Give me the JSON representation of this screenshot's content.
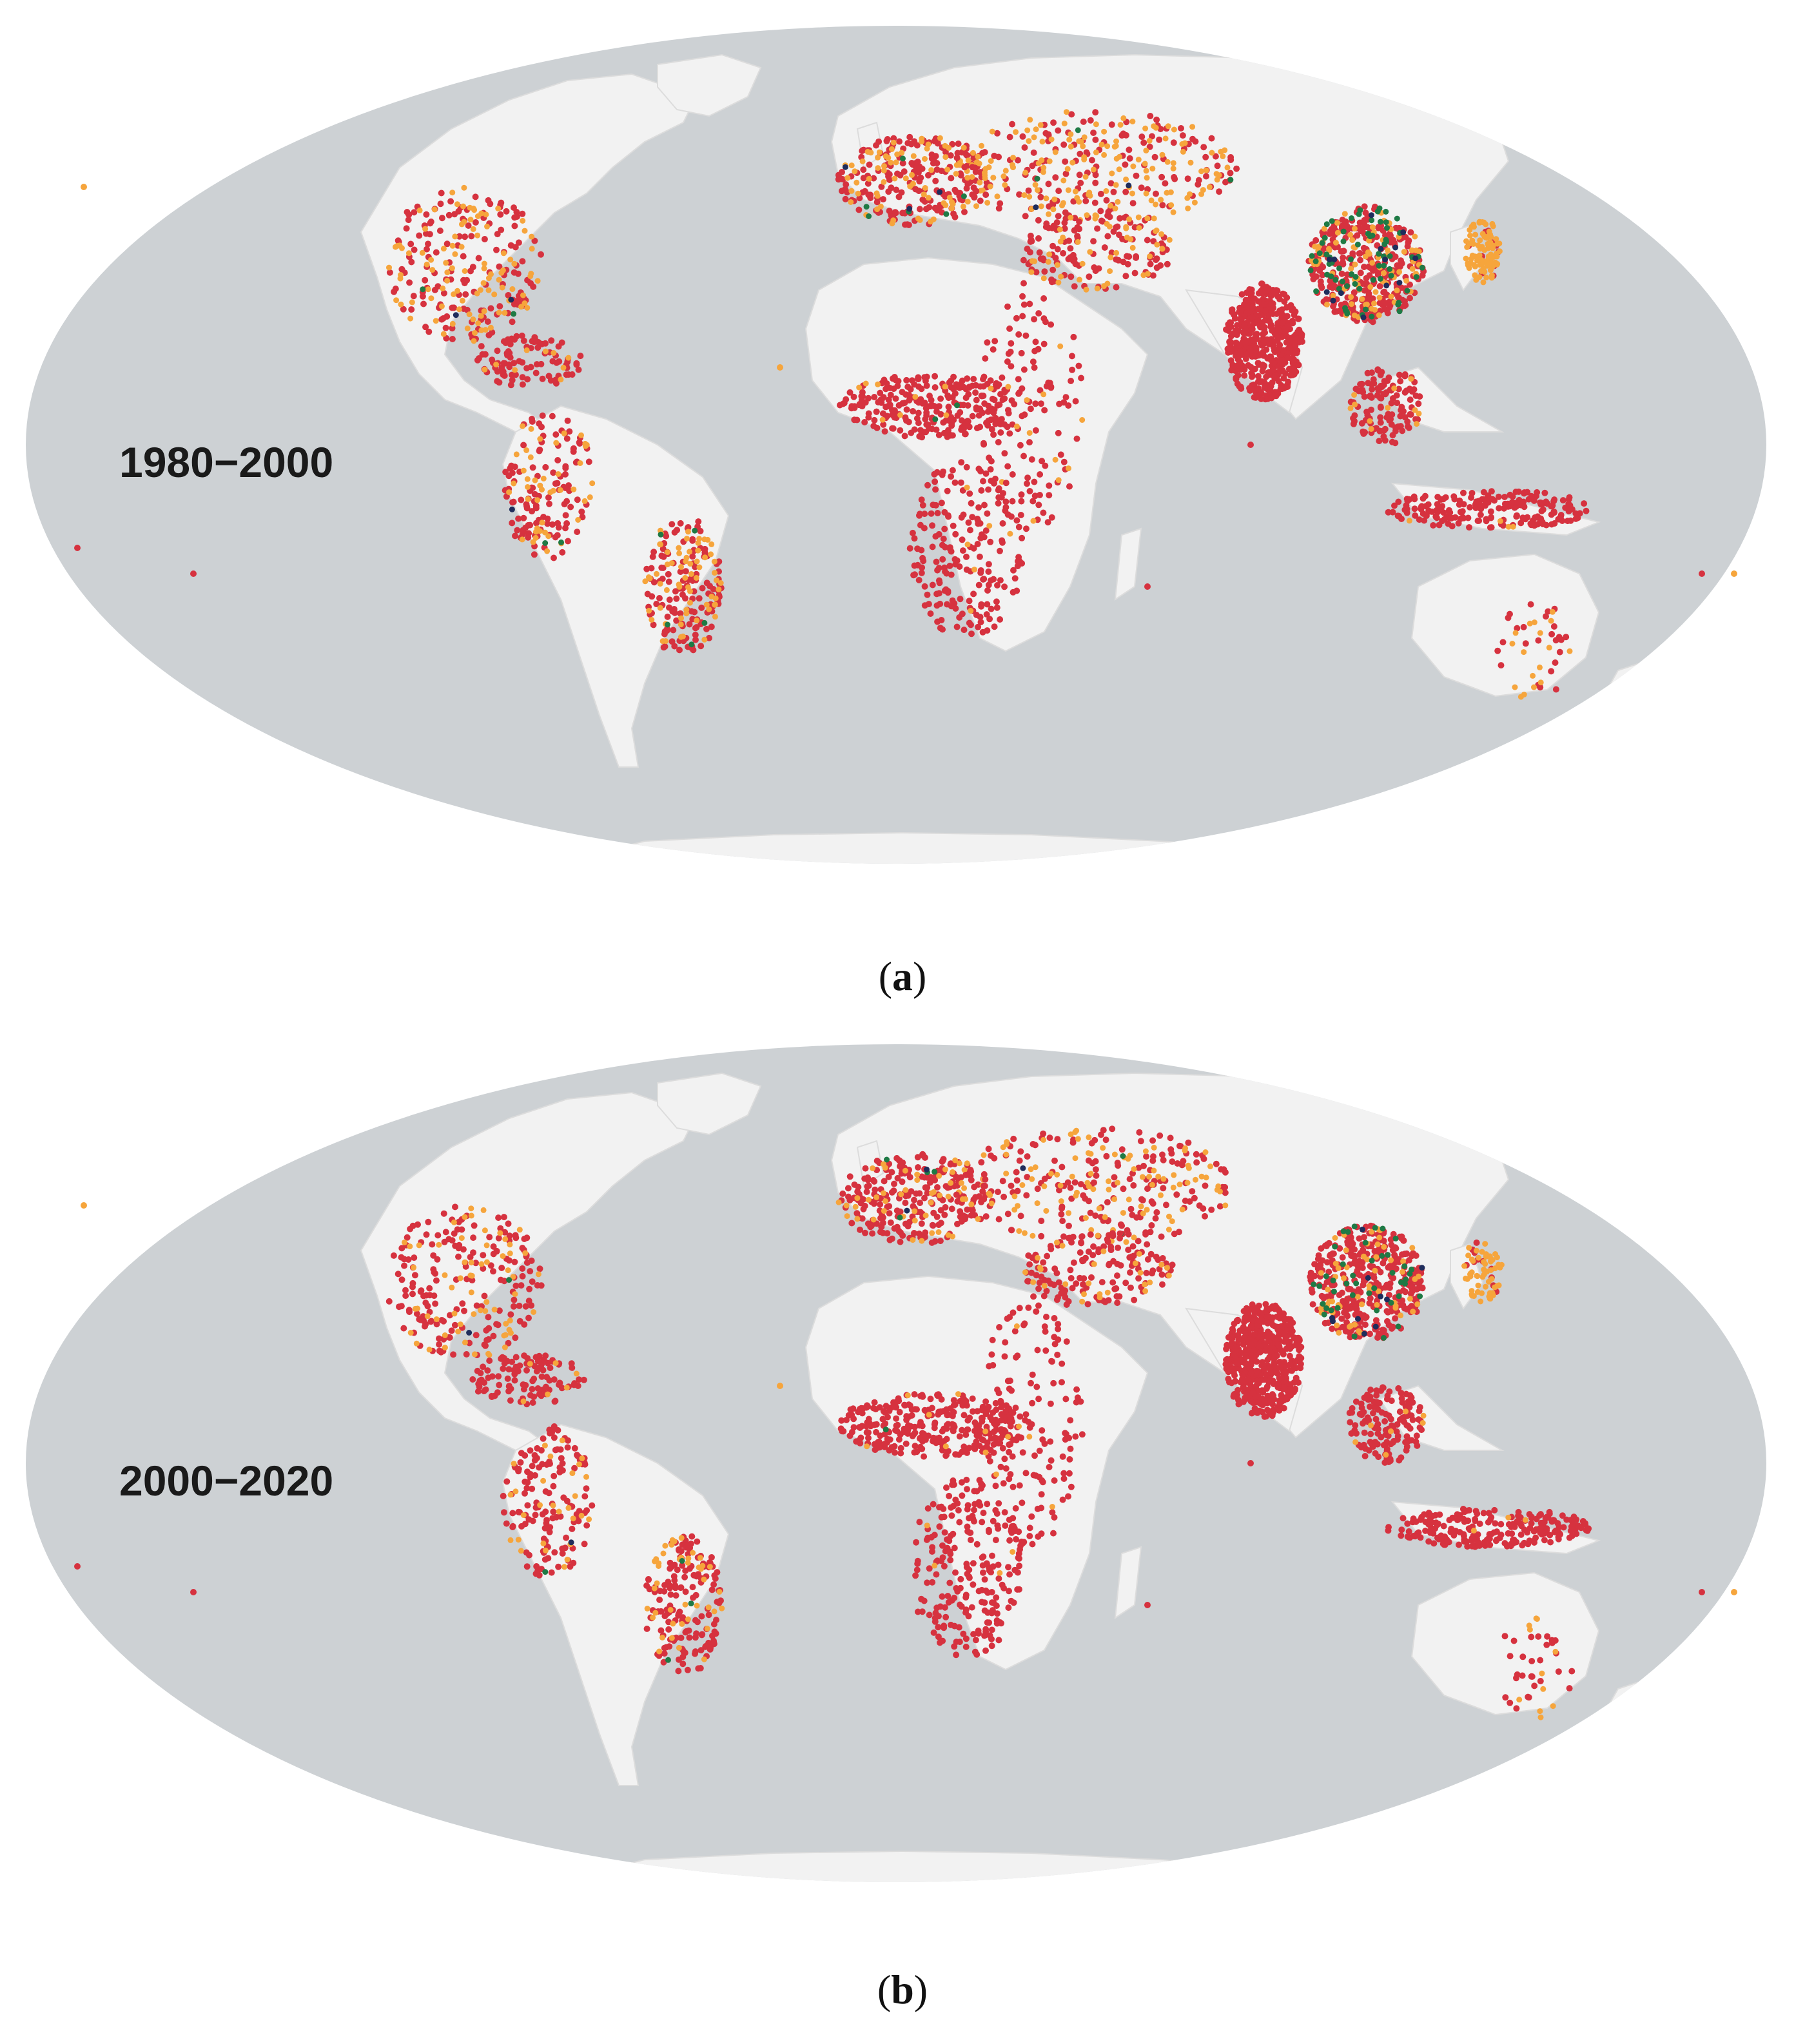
{
  "panels": [
    {
      "id": "a",
      "period": "1980−2000",
      "caption_letter": "a"
    },
    {
      "id": "b",
      "period": "2000−2020",
      "caption_letter": "b"
    }
  ],
  "colors": {
    "ocean": "#cdd1d4",
    "land": "#f2f2f2",
    "border": "#dcdcdc",
    "red": "#d6323f",
    "orange": "#f6a53c",
    "green": "#1f7a45",
    "navy": "#1f2d5c",
    "lightgreen": "#9bcf8a"
  },
  "point_categories": [
    "red",
    "orange",
    "green",
    "navy",
    "lightgreen"
  ]
}
